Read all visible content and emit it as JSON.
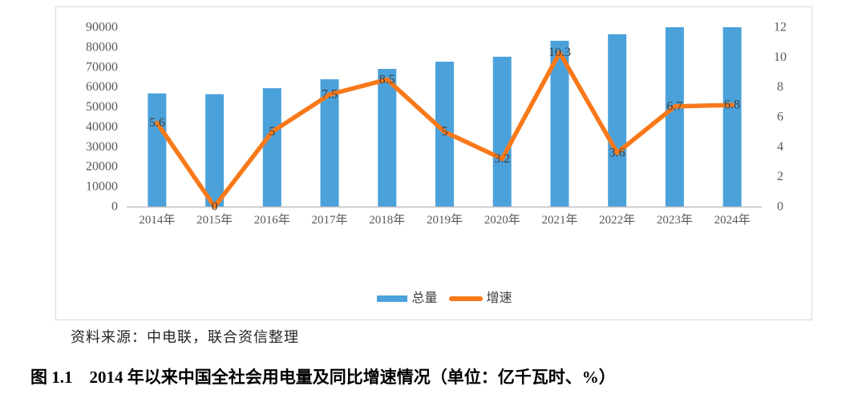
{
  "colors": {
    "bar": "#4BA1DA",
    "line": "#F8791A",
    "data_label": "#404040",
    "axis_text": "#595959",
    "axis_line": "#BFBFBF",
    "chart_border": "#D9D9D9"
  },
  "chart_data": {
    "type": "bar",
    "subtype": "combo bar+line, dual axis",
    "title": "2014年以来中国全社会用电量及同比增速情况",
    "units": "亿千瓦时、%",
    "categories": [
      "2014年",
      "2015年",
      "2016年",
      "2017年",
      "2018年",
      "2019年",
      "2020年",
      "2021年",
      "2022年",
      "2023年",
      "2024年"
    ],
    "series": [
      {
        "name": "总量",
        "type": "bar",
        "axis": "left",
        "values": [
          56800,
          56400,
          59400,
          63900,
          69100,
          72700,
          75200,
          83200,
          86500,
          90000,
          90000
        ],
        "note": "values estimated from bar heights; 2023 and 2024 bars reach the left-axis maximum (clipped at 90000)"
      },
      {
        "name": "增速",
        "type": "line",
        "axis": "right",
        "values": [
          5.6,
          0,
          5,
          7.5,
          8.5,
          5,
          3.2,
          10.3,
          3.6,
          6.7,
          6.8
        ],
        "data_labels": [
          "5.6",
          "0",
          "5",
          "7.5",
          "8.5",
          "5",
          "3.2",
          "10.3",
          "3.6",
          "6.7",
          "6.8"
        ]
      }
    ],
    "left_axis": {
      "min": 0,
      "max": 90000,
      "ticks": [
        "0",
        "10000",
        "20000",
        "30000",
        "40000",
        "50000",
        "60000",
        "70000",
        "80000",
        "90000"
      ]
    },
    "right_axis": {
      "min": 0,
      "max": 12,
      "ticks": [
        "0",
        "2",
        "4",
        "6",
        "8",
        "10",
        "12"
      ]
    },
    "legend_position": "bottom",
    "grid": false
  },
  "source_note": {
    "text": "资料来源：中电联，联合资信整理"
  },
  "caption": {
    "text": "图 1.1　2014 年以来中国全社会用电量及同比增速情况（单位：亿千瓦时、%）"
  }
}
